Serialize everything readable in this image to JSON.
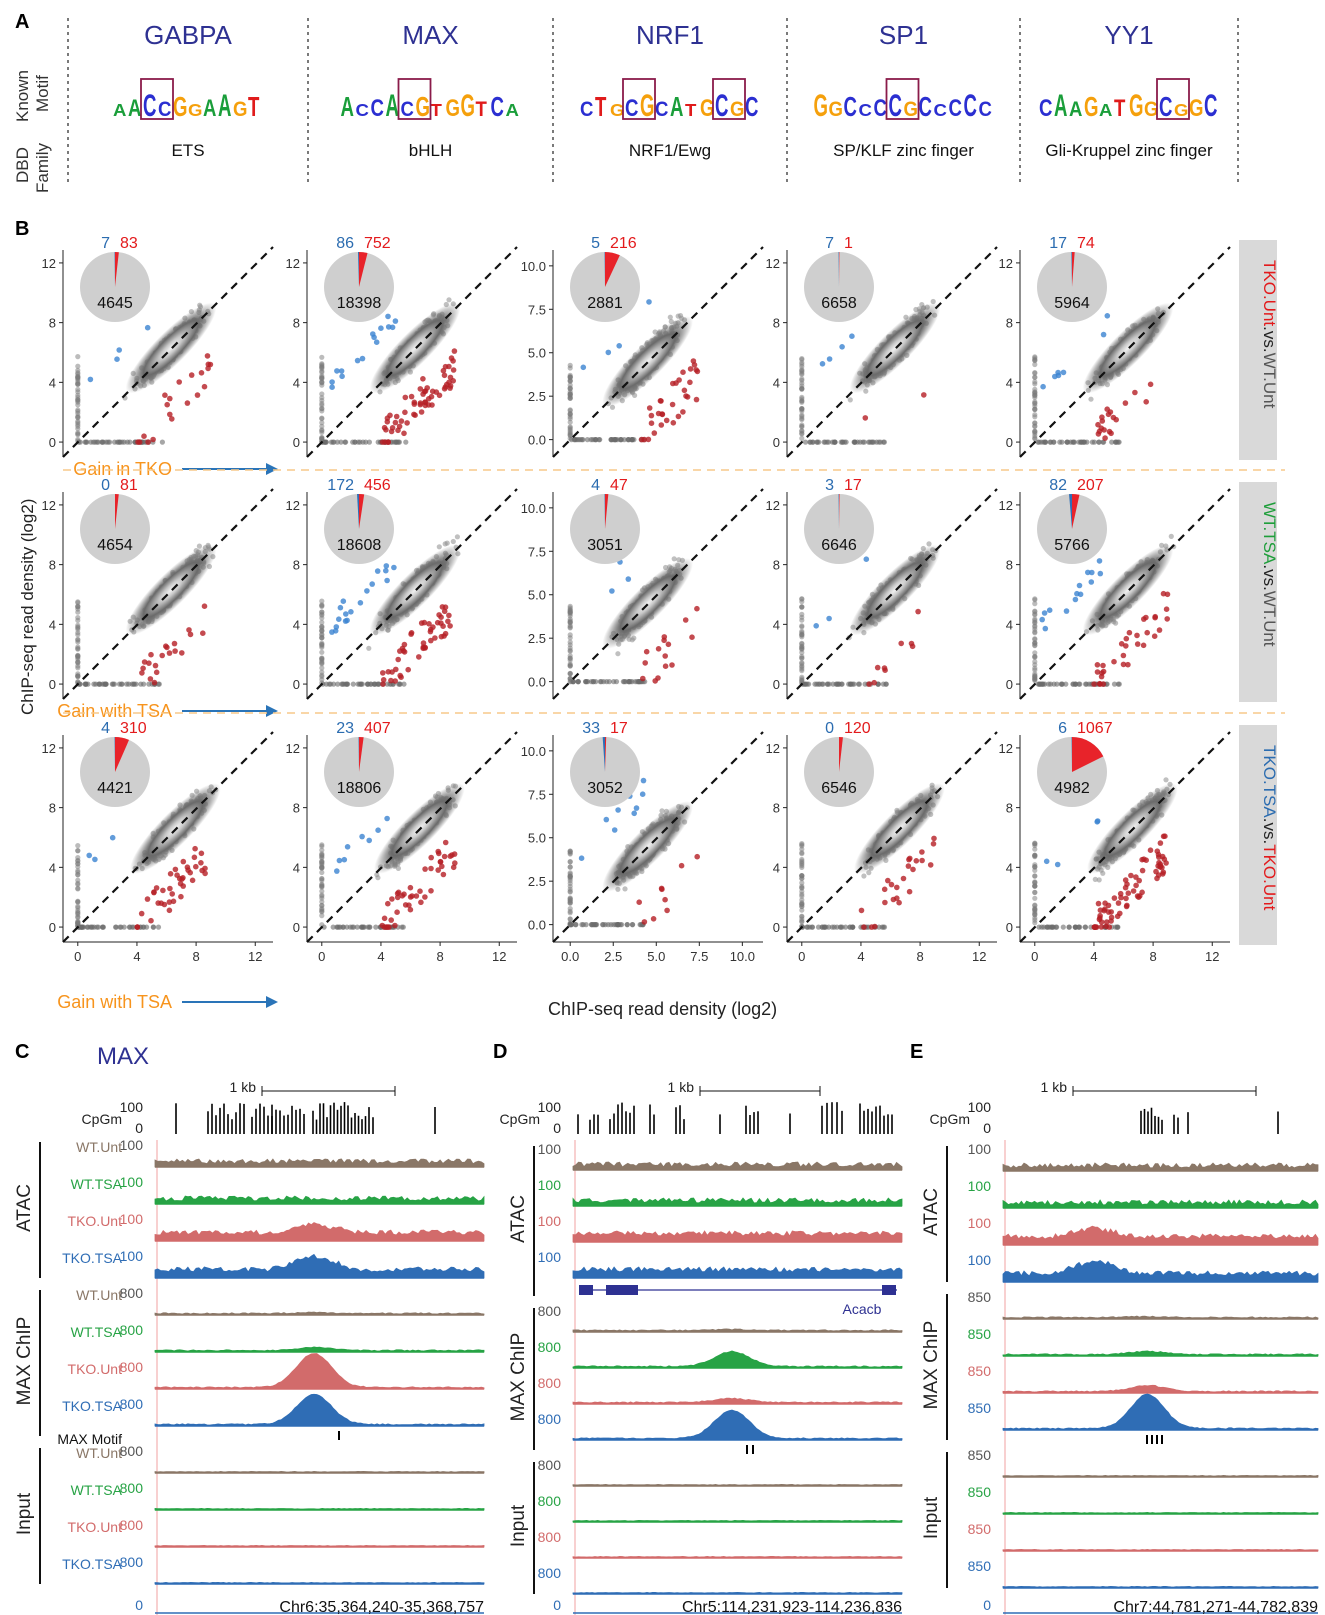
{
  "colors": {
    "indigo": "#2e3192",
    "blue": "#2b6cb0",
    "red": "#e31a1c",
    "green": "#1e9e3a",
    "orange": "#f7941d",
    "gray": "#555555",
    "wt_unt": "#8a7767",
    "wt_tsa": "#27a345",
    "tko_unt": "#d26b6b",
    "tko_tsa": "#2f6db5",
    "blue_pt": "#3b83d1",
    "red_pt": "#b51e24"
  },
  "panelA": {
    "label": "A",
    "row_labels": [
      "Known",
      "Motif",
      "DBD",
      "Family"
    ],
    "tfs": [
      {
        "name": "GABPA",
        "motif": "AACCGGAAGT",
        "family": "ETS"
      },
      {
        "name": "MAX",
        "motif": "ACCACGTGGTCA",
        "family": "bHLH"
      },
      {
        "name": "NRF1",
        "motif": "CTGCGCATGCGC",
        "family": "NRF1/Ewg"
      },
      {
        "name": "SP1",
        "motif": "GGCCCCGCCCCC",
        "family": "SP/KLF zinc finger"
      },
      {
        "name": "YY1",
        "motif": "CAAGATGGCGGC",
        "family": "Gli-Kruppel zinc finger"
      }
    ]
  },
  "panelB": {
    "label": "B",
    "ylabel": "ChIP-seq read density (log2)",
    "xlabel": "ChIP-seq read density (log2)",
    "row_labels": [
      {
        "a": "TKO.Unt",
        "vs": ".vs.",
        "b": "WT.Unt"
      },
      {
        "a": "WT.TSA",
        "vs": ".vs.",
        "b": "WT.Unt"
      },
      {
        "a": "TKO.TSA",
        "vs": ".vs.",
        "b": "TKO.Unt"
      }
    ],
    "annotations": [
      "Gain in TKO",
      "Gain with TSA",
      "Gain with TSA"
    ],
    "pies": [
      [
        {
          "blue": 7,
          "red": 83,
          "gray": 4645
        },
        {
          "blue": 86,
          "red": 752,
          "gray": 18398
        },
        {
          "blue": 5,
          "red": 216,
          "gray": 2881
        },
        {
          "blue": 7,
          "red": 1,
          "gray": 6658
        },
        {
          "blue": 17,
          "red": 74,
          "gray": 5964
        }
      ],
      [
        {
          "blue": 0,
          "red": 81,
          "gray": 4654
        },
        {
          "blue": 172,
          "red": 456,
          "gray": 18608
        },
        {
          "blue": 4,
          "red": 47,
          "gray": 3051
        },
        {
          "blue": 3,
          "red": 17,
          "gray": 6646
        },
        {
          "blue": 82,
          "red": 207,
          "gray": 5766
        }
      ],
      [
        {
          "blue": 4,
          "red": 310,
          "gray": 4421
        },
        {
          "blue": 23,
          "red": 407,
          "gray": 18806
        },
        {
          "blue": 33,
          "red": 17,
          "gray": 3052
        },
        {
          "blue": 0,
          "red": 120,
          "gray": 6546
        },
        {
          "blue": 6,
          "red": 1067,
          "gray": 4982
        }
      ]
    ],
    "ticks_std": [
      "0",
      "4",
      "8",
      "12"
    ],
    "ticks_nrf1": [
      "0.0",
      "2.5",
      "5.0",
      "7.5",
      "10.0"
    ]
  },
  "panelC": {
    "label": "C",
    "title": "MAX",
    "scale": "1 kb",
    "cpg": "CpGm",
    "cpg_ticks": [
      "100",
      "0"
    ],
    "group_atac": "ATAC",
    "group_chip": "MAX ChIP",
    "group_input": "Input",
    "motif_label": "MAX Motif",
    "samples": [
      "WT.Unt",
      "WT.TSA",
      "TKO.Unt",
      "TKO.TSA"
    ],
    "atac_scale": "100",
    "chip_scale": "800",
    "zero": "0",
    "coord": "Chr6:35,364,240-35,368,757"
  },
  "panelD": {
    "label": "D",
    "scale": "1 kb",
    "cpg": "CpGm",
    "cpg_ticks": [
      "100",
      "0"
    ],
    "group_atac": "ATAC",
    "group_chip": "MAX ChIP",
    "group_input": "Input",
    "gene": "Acacb",
    "atac_scale": "100",
    "chip_scale": "800",
    "zero": "0",
    "coord": "Chr5:114,231,923-114,236,836"
  },
  "panelE": {
    "label": "E",
    "scale": "1 kb",
    "cpg": "CpGm",
    "cpg_ticks": [
      "100",
      "0"
    ],
    "group_atac": "ATAC",
    "group_chip": "MAX ChIP",
    "group_input": "Input",
    "atac_scale": "100",
    "chip_scale": "850",
    "zero": "0",
    "coord": "Chr7:44,781,271-44,782,839"
  }
}
